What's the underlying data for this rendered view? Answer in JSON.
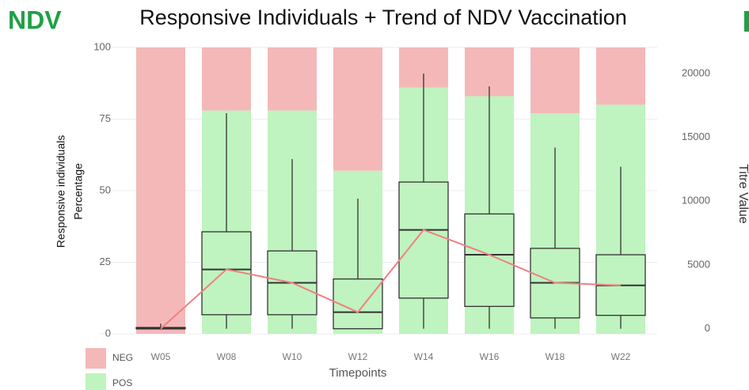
{
  "chart_data": {
    "type": "bar",
    "label": "NDV",
    "title": "Responsive Individuals + Trend of NDV Vaccination",
    "y_label": [
      "Responsive individuals",
      "Percentage"
    ],
    "y2_label": "Titre Value",
    "x_label": "Timepoints",
    "categories": [
      "W05",
      "W08",
      "W10",
      "W12",
      "W14",
      "W16",
      "W18",
      "W22"
    ],
    "series": [
      {
        "name": "NEG",
        "color": "#f4b8b8",
        "values": [
          100,
          22,
          22,
          43,
          14,
          17,
          23,
          20
        ]
      },
      {
        "name": "POS",
        "color": "#bff3bf",
        "values": [
          0,
          78,
          78,
          57,
          86,
          83,
          77,
          80
        ]
      }
    ],
    "boxes": {
      "whisker_low": [
        0,
        0,
        0,
        0,
        0,
        0,
        0,
        0
      ],
      "q1": [
        0,
        1100,
        1100,
        0,
        2400,
        1750,
        850,
        1050
      ],
      "median": [
        0,
        4650,
        3600,
        1300,
        7750,
        5800,
        3600,
        3400
      ],
      "q3": [
        100,
        7600,
        6100,
        3900,
        11500,
        9000,
        6300,
        5800
      ],
      "whisker_high": [
        400,
        16900,
        13300,
        10200,
        20000,
        19000,
        14200,
        12700
      ]
    },
    "trend_color": "#f08080",
    "ylim": [
      0,
      100
    ],
    "yticks": [
      0,
      25,
      50,
      75,
      100
    ],
    "y2lim": [
      -400,
      22050
    ],
    "y2ticks": [
      0,
      5000,
      10000,
      15000,
      20000
    ],
    "grid": true
  }
}
